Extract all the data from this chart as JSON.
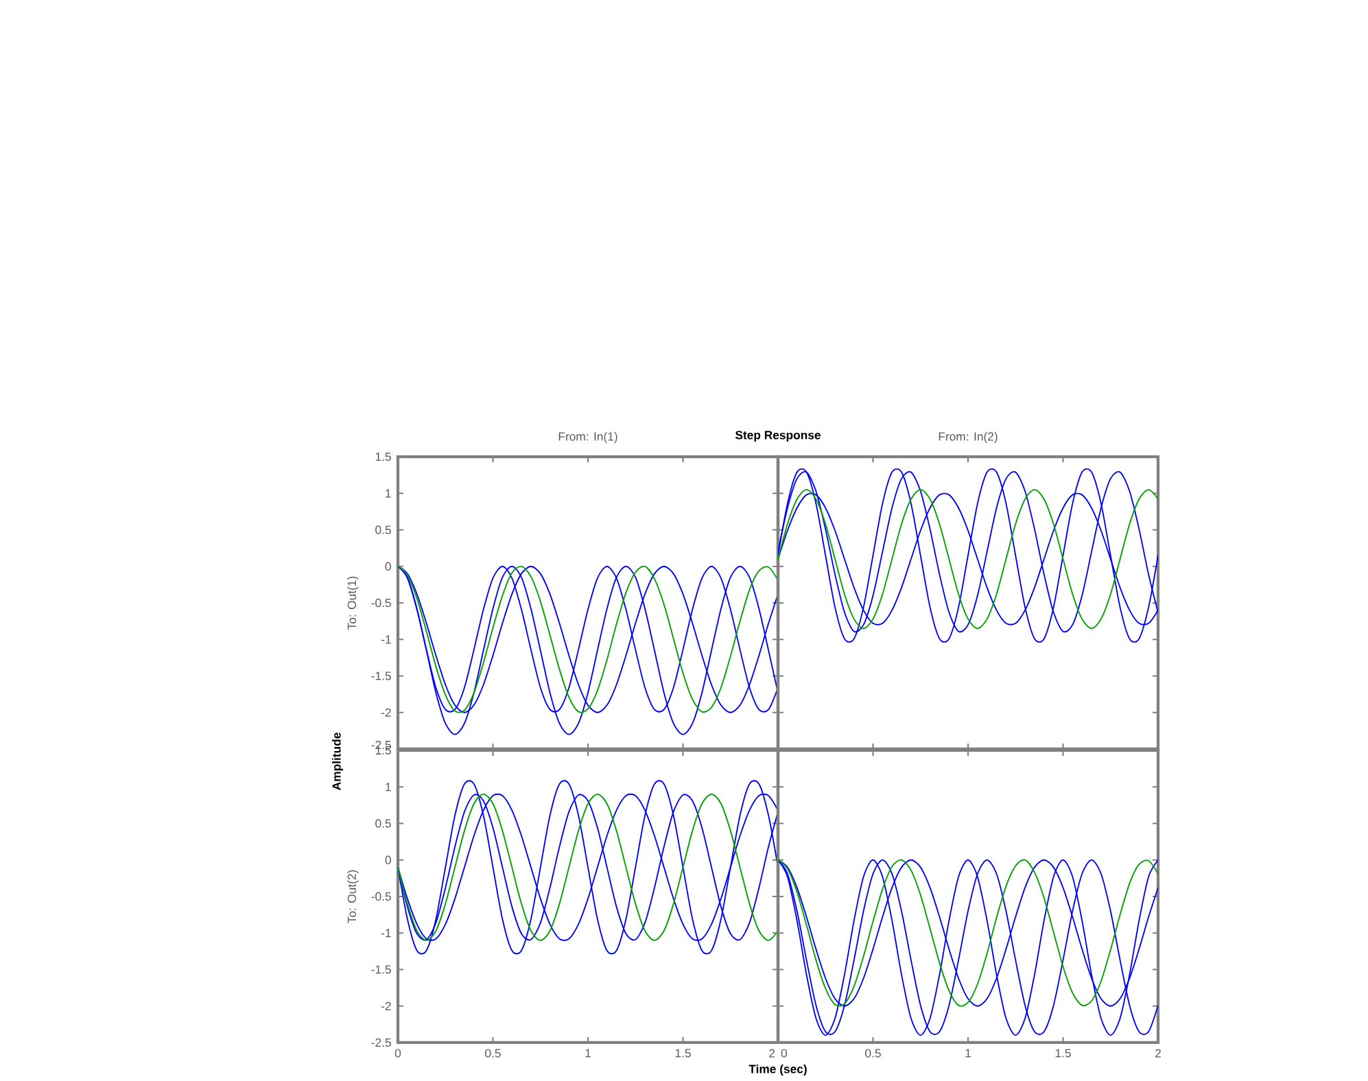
{
  "chart_data": [
    {
      "type": "line",
      "title": "From: In(1)",
      "ylabel": "To: Out(1)",
      "annotations": [
        "Step Response",
        "Amplitude",
        "Time (sec)"
      ],
      "xlim": [
        0,
        2
      ],
      "ylim": [
        -2.5,
        1.5
      ],
      "xticks": [
        0,
        0.5,
        1,
        1.5,
        2
      ],
      "yticks": [
        -2.5,
        -2,
        -1.5,
        -1,
        -0.5,
        0,
        0.5,
        1,
        1.5
      ],
      "tick_labels": "y",
      "x": [
        0,
        0.05,
        0.1,
        0.15,
        0.2,
        0.25,
        0.3,
        0.35,
        0.4,
        0.45,
        0.5,
        0.55,
        0.6,
        0.65,
        0.7,
        0.75,
        0.8,
        0.85,
        0.9,
        0.95,
        1,
        1.05,
        1.1,
        1.15,
        1.2,
        1.25,
        1.3,
        1.35,
        1.4,
        1.45,
        1.5,
        1.55,
        1.6,
        1.65,
        1.7,
        1.75,
        1.8,
        1.85,
        1.9,
        1.95,
        2
      ],
      "series": [
        {
          "color": "#0000ff",
          "values": [
            0,
            -0.15,
            -0.58,
            -1.15,
            -1.73,
            -2.15,
            -2.3,
            -2.15,
            -1.73,
            -1.15,
            -0.58,
            -0.15,
            0,
            -0.15,
            -0.58,
            -1.15,
            -1.73,
            -2.15,
            -2.3,
            -2.15,
            -1.73,
            -1.15,
            -0.58,
            -0.15,
            0,
            -0.15,
            -0.58,
            -1.15,
            -1.73,
            -2.15,
            -2.3,
            -2.15,
            -1.73,
            -1.15,
            -0.58,
            -0.15,
            0,
            -0.15,
            -0.58,
            -1.15,
            -1.73
          ]
        },
        {
          "color": "#0000ff",
          "values": [
            0,
            -0.16,
            -0.59,
            -1.14,
            -1.66,
            -1.96,
            -1.96,
            -1.66,
            -1.14,
            -0.59,
            -0.16,
            0,
            -0.16,
            -0.59,
            -1.14,
            -1.66,
            -1.96,
            -1.96,
            -1.66,
            -1.14,
            -0.59,
            -0.16,
            0,
            -0.16,
            -0.59,
            -1.14,
            -1.66,
            -1.96,
            -1.96,
            -1.66,
            -1.14,
            -0.59,
            -0.16,
            0,
            -0.16,
            -0.59,
            -1.14,
            -1.66,
            -1.96,
            -1.96,
            -1.66
          ]
        },
        {
          "color": "#0000ff",
          "values": [
            0,
            -0.1,
            -0.38,
            -0.78,
            -1.22,
            -1.62,
            -1.9,
            -2,
            -1.9,
            -1.62,
            -1.22,
            -0.78,
            -0.38,
            -0.1,
            0,
            -0.1,
            -0.38,
            -0.78,
            -1.22,
            -1.62,
            -1.9,
            -2,
            -1.9,
            -1.62,
            -1.22,
            -0.78,
            -0.38,
            -0.1,
            0,
            -0.1,
            -0.38,
            -0.78,
            -1.22,
            -1.62,
            -1.9,
            -2,
            -1.9,
            -1.62,
            -1.22,
            -0.78,
            -0.38
          ]
        },
        {
          "color": "#00a000",
          "values": [
            0,
            -0.12,
            -0.44,
            -0.89,
            -1.37,
            -1.76,
            -1.98,
            -1.97,
            -1.73,
            -1.32,
            -0.84,
            -0.4,
            -0.09,
            0,
            -0.14,
            -0.48,
            -0.94,
            -1.41,
            -1.79,
            -1.99,
            -1.95,
            -1.7,
            -1.28,
            -0.79,
            -0.36,
            -0.08,
            0,
            -0.17,
            -0.52,
            -0.99,
            -1.46,
            -1.82,
            -1.99,
            -1.93,
            -1.66,
            -1.23,
            -0.75,
            -0.32,
            -0.06,
            -0.01,
            -0.19
          ]
        }
      ]
    },
    {
      "type": "line",
      "title": "From: In(2)",
      "xlim": [
        0,
        2
      ],
      "ylim": [
        -2.5,
        1.5
      ],
      "xticks": [
        0,
        0.5,
        1,
        1.5,
        2
      ],
      "yticks": [
        -2.5,
        -2,
        -1.5,
        -1,
        -0.5,
        0,
        0.5,
        1,
        1.5
      ],
      "tick_labels": false,
      "x": [
        0,
        0.05,
        0.1,
        0.15,
        0.2,
        0.25,
        0.3,
        0.35,
        0.4,
        0.45,
        0.5,
        0.55,
        0.6,
        0.65,
        0.7,
        0.75,
        0.8,
        0.85,
        0.9,
        0.95,
        1,
        1.05,
        1.1,
        1.15,
        1.2,
        1.25,
        1.3,
        1.35,
        1.4,
        1.45,
        1.5,
        1.55,
        1.6,
        1.65,
        1.7,
        1.75,
        1.8,
        1.85,
        1.9,
        1.95,
        2
      ],
      "series": [
        {
          "color": "#0000ff",
          "values": [
            0.15,
            0.86,
            1.29,
            1.29,
            0.86,
            0.15,
            -0.56,
            -0.99,
            -0.99,
            -0.56,
            0.15,
            0.86,
            1.29,
            1.29,
            0.86,
            0.15,
            -0.56,
            -0.99,
            -0.99,
            -0.56,
            0.15,
            0.86,
            1.29,
            1.29,
            0.86,
            0.15,
            -0.56,
            -0.99,
            -0.99,
            -0.56,
            0.15,
            0.86,
            1.29,
            1.29,
            0.86,
            0.15,
            -0.56,
            -0.99,
            -0.99,
            -0.56,
            0.15
          ]
        },
        {
          "color": "#0000ff",
          "values": [
            0.1,
            0.49,
            0.8,
            0.98,
            0.98,
            0.8,
            0.49,
            0.1,
            -0.29,
            -0.6,
            -0.78,
            -0.78,
            -0.6,
            -0.29,
            0.1,
            0.49,
            0.8,
            0.98,
            0.98,
            0.8,
            0.49,
            0.1,
            -0.29,
            -0.6,
            -0.78,
            -0.78,
            -0.6,
            -0.29,
            0.1,
            0.49,
            0.8,
            0.98,
            0.98,
            0.8,
            0.49,
            0.1,
            -0.29,
            -0.6,
            -0.78,
            -0.78,
            -0.6
          ]
        },
        {
          "color": "#0000ff",
          "values": [
            0.2,
            0.8,
            1.2,
            1.29,
            1.03,
            0.51,
            -0.11,
            -0.63,
            -0.89,
            -0.8,
            -0.4,
            0.2,
            0.8,
            1.2,
            1.29,
            1.03,
            0.51,
            -0.11,
            -0.63,
            -0.89,
            -0.8,
            -0.4,
            0.2,
            0.8,
            1.2,
            1.29,
            1.03,
            0.51,
            -0.11,
            -0.63,
            -0.89,
            -0.8,
            -0.4,
            0.2,
            0.8,
            1.2,
            1.29,
            1.03,
            0.51,
            -0.11,
            -0.63
          ]
        },
        {
          "color": "#00a000",
          "values": [
            0.1,
            0.58,
            0.92,
            1.05,
            0.92,
            0.58,
            0.1,
            -0.38,
            -0.72,
            -0.85,
            -0.72,
            -0.38,
            0.1,
            0.58,
            0.92,
            1.05,
            0.92,
            0.58,
            0.1,
            -0.38,
            -0.72,
            -0.85,
            -0.72,
            -0.38,
            0.1,
            0.58,
            0.92,
            1.05,
            0.92,
            0.58,
            0.1,
            -0.38,
            -0.72,
            -0.85,
            -0.72,
            -0.38,
            0.1,
            0.58,
            0.92,
            1.05,
            0.92
          ]
        }
      ]
    },
    {
      "type": "line",
      "ylabel": "To: Out(2)",
      "xlim": [
        0,
        2
      ],
      "ylim": [
        -2.5,
        1.5
      ],
      "xticks": [
        0,
        0.5,
        1,
        1.5,
        2
      ],
      "yticks": [
        -2.5,
        -2,
        -1.5,
        -1,
        -0.5,
        0,
        0.5,
        1,
        1.5
      ],
      "x": [
        0,
        0.05,
        0.1,
        0.15,
        0.2,
        0.25,
        0.3,
        0.35,
        0.4,
        0.45,
        0.5,
        0.55,
        0.6,
        0.65,
        0.7,
        0.75,
        0.8,
        0.85,
        0.9,
        0.95,
        1,
        1.05,
        1.1,
        1.15,
        1.2,
        1.25,
        1.3,
        1.35,
        1.4,
        1.45,
        1.5,
        1.55,
        1.6,
        1.65,
        1.7,
        1.75,
        1.8,
        1.85,
        1.9,
        1.95,
        2
      ],
      "series": [
        {
          "color": "#0000ff",
          "values": [
            -0.1,
            -0.81,
            -1.24,
            -1.24,
            -0.81,
            -0.1,
            0.61,
            1.04,
            1.04,
            0.61,
            -0.1,
            -0.81,
            -1.24,
            -1.24,
            -0.81,
            -0.1,
            0.61,
            1.04,
            1.04,
            0.61,
            -0.1,
            -0.81,
            -1.24,
            -1.24,
            -0.81,
            -0.1,
            0.61,
            1.04,
            1.04,
            0.61,
            -0.1,
            -0.81,
            -1.24,
            -1.24,
            -0.81,
            -0.1,
            0.61,
            1.04,
            1.04,
            0.61,
            -0.1
          ]
        },
        {
          "color": "#0000ff",
          "values": [
            -0.1,
            -0.53,
            -0.88,
            -1.08,
            -1.08,
            -0.88,
            -0.53,
            -0.1,
            0.33,
            0.68,
            0.88,
            0.88,
            0.68,
            0.33,
            -0.1,
            -0.53,
            -0.88,
            -1.08,
            -1.08,
            -0.88,
            -0.53,
            -0.1,
            0.33,
            0.68,
            0.88,
            0.88,
            0.68,
            0.33,
            -0.1,
            -0.53,
            -0.88,
            -1.08,
            -1.08,
            -0.88,
            -0.53,
            -0.1,
            0.33,
            0.68,
            0.88,
            0.88,
            0.68
          ]
        },
        {
          "color": "#0000ff",
          "values": [
            -0.1,
            -0.64,
            -1.01,
            -1.09,
            -0.86,
            -0.38,
            0.18,
            0.66,
            0.89,
            0.81,
            0.44,
            -0.1,
            -0.64,
            -1.01,
            -1.09,
            -0.86,
            -0.38,
            0.18,
            0.66,
            0.89,
            0.81,
            0.44,
            -0.1,
            -0.64,
            -1.01,
            -1.09,
            -0.86,
            -0.38,
            0.18,
            0.66,
            0.89,
            0.81,
            0.44,
            -0.1,
            -0.64,
            -1.01,
            -1.09,
            -0.86,
            -0.38,
            0.18,
            0.66
          ]
        },
        {
          "color": "#00a000",
          "values": [
            -0.1,
            -0.6,
            -0.97,
            -1.1,
            -0.97,
            -0.6,
            -0.1,
            0.4,
            0.77,
            0.9,
            0.77,
            0.4,
            -0.1,
            -0.6,
            -0.97,
            -1.1,
            -0.97,
            -0.6,
            -0.1,
            0.4,
            0.77,
            0.9,
            0.77,
            0.4,
            -0.1,
            -0.6,
            -0.97,
            -1.1,
            -0.97,
            -0.6,
            -0.1,
            0.4,
            0.77,
            0.9,
            0.77,
            0.4,
            -0.1,
            -0.6,
            -0.97,
            -1.1,
            -0.97
          ]
        }
      ]
    },
    {
      "type": "line",
      "xlim": [
        0,
        2
      ],
      "ylim": [
        -2.5,
        1.5
      ],
      "xticks": [
        0,
        0.5,
        1,
        1.5,
        2
      ],
      "yticks": [
        -2.5,
        -2,
        -1.5,
        -1,
        -0.5,
        0,
        0.5,
        1,
        1.5
      ],
      "tick_labels": "x",
      "x": [
        0,
        0.05,
        0.1,
        0.15,
        0.2,
        0.25,
        0.3,
        0.35,
        0.4,
        0.45,
        0.5,
        0.55,
        0.6,
        0.65,
        0.7,
        0.75,
        0.8,
        0.85,
        0.9,
        0.95,
        1,
        1.05,
        1.1,
        1.15,
        1.2,
        1.25,
        1.3,
        1.35,
        1.4,
        1.45,
        1.5,
        1.55,
        1.6,
        1.65,
        1.7,
        1.75,
        1.8,
        1.85,
        1.9,
        1.95,
        2
      ],
      "series": [
        {
          "color": "#0000ff",
          "values": [
            0,
            -0.23,
            -0.83,
            -1.57,
            -2.17,
            -2.4,
            -2.17,
            -1.57,
            -0.83,
            -0.23,
            0,
            -0.23,
            -0.83,
            -1.57,
            -2.17,
            -2.4,
            -2.17,
            -1.57,
            -0.83,
            -0.23,
            0,
            -0.23,
            -0.83,
            -1.57,
            -2.17,
            -2.4,
            -2.17,
            -1.57,
            -0.83,
            -0.23,
            0,
            -0.23,
            -0.83,
            -1.57,
            -2.17,
            -2.4,
            -2.17,
            -1.57,
            -0.83,
            -0.23,
            0
          ]
        },
        {
          "color": "#0000ff",
          "values": [
            0,
            -0.1,
            -0.38,
            -0.78,
            -1.22,
            -1.62,
            -1.9,
            -2,
            -1.9,
            -1.62,
            -1.22,
            -0.78,
            -0.38,
            -0.1,
            0,
            -0.1,
            -0.38,
            -0.78,
            -1.22,
            -1.62,
            -1.9,
            -2,
            -1.9,
            -1.62,
            -1.22,
            -0.78,
            -0.38,
            -0.1,
            0,
            -0.1,
            -0.38,
            -0.78,
            -1.22,
            -1.62,
            -1.9,
            -2,
            -1.9,
            -1.62,
            -1.22,
            -0.78,
            -0.38
          ]
        },
        {
          "color": "#0000ff",
          "values": [
            0,
            -0.19,
            -0.7,
            -1.37,
            -1.99,
            -2.35,
            -2.35,
            -1.99,
            -1.37,
            -0.7,
            -0.19,
            0,
            -0.19,
            -0.7,
            -1.37,
            -1.99,
            -2.35,
            -2.35,
            -1.99,
            -1.37,
            -0.7,
            -0.19,
            0,
            -0.19,
            -0.7,
            -1.37,
            -1.99,
            -2.35,
            -2.35,
            -1.99,
            -1.37,
            -0.7,
            -0.19,
            0,
            -0.19,
            -0.7,
            -1.37,
            -1.99,
            -2.35,
            -2.35,
            -1.99
          ]
        },
        {
          "color": "#00a000",
          "values": [
            0,
            -0.12,
            -0.44,
            -0.89,
            -1.37,
            -1.76,
            -1.98,
            -1.97,
            -1.73,
            -1.32,
            -0.84,
            -0.4,
            -0.09,
            0,
            -0.14,
            -0.48,
            -0.94,
            -1.41,
            -1.79,
            -1.99,
            -1.95,
            -1.7,
            -1.28,
            -0.79,
            -0.36,
            -0.08,
            0,
            -0.17,
            -0.52,
            -0.99,
            -1.46,
            -1.82,
            -1.99,
            -1.93,
            -1.66,
            -1.23,
            -0.75,
            -0.32,
            -0.06,
            -0.01,
            -0.19
          ]
        }
      ]
    }
  ]
}
